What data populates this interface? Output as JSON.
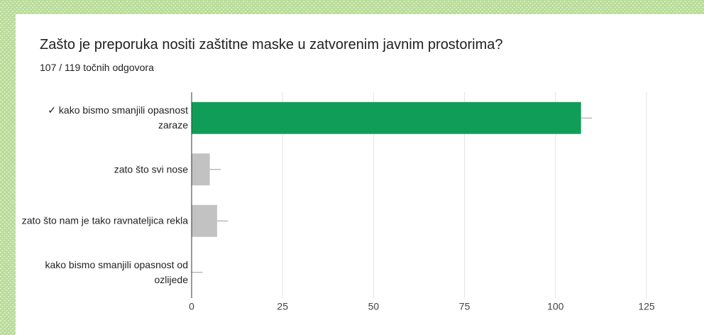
{
  "chart_data": {
    "type": "hbar",
    "title": "Zašto je preporuka nositi zaštitne maske u zatvorenim javnim prostorima?",
    "subtitle": "107 / 119 točnih odgovora",
    "categories": [
      "✓ kako bismo smanjili opasnost zaraze",
      "zato što svi nose",
      "zato što nam je tako ravnateljica rekla",
      "kako bismo smanjili opasnost od ozlijede"
    ],
    "values": [
      107,
      5,
      7,
      0
    ],
    "errors": [
      3,
      3,
      3,
      3
    ],
    "colors": [
      "#0f9d58",
      "#c2c2c2",
      "#c2c2c2",
      "#c2c2c2"
    ],
    "xlim": [
      0,
      125
    ],
    "xticks": [
      0,
      25,
      50,
      75,
      100,
      125
    ],
    "grid": true
  }
}
